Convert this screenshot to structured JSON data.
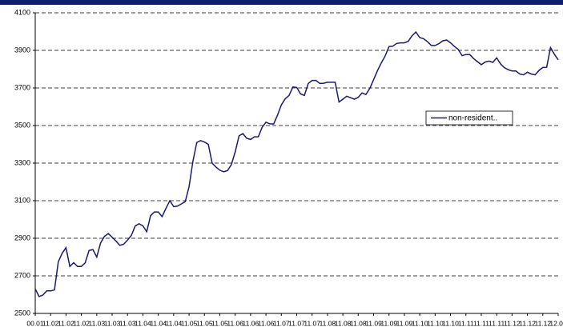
{
  "chart_data": {
    "type": "line",
    "categories": [
      "00.01",
      null,
      null,
      null,
      "11.02",
      null,
      null,
      null,
      "11.02",
      null,
      null,
      null,
      "11.02",
      null,
      null,
      null,
      "11.03",
      null,
      null,
      null,
      "11.03",
      null,
      null,
      null,
      "11.03",
      null,
      null,
      null,
      "11.04",
      null,
      null,
      null,
      "11.04",
      null,
      null,
      null,
      "11.04",
      null,
      null,
      null,
      "11.05",
      null,
      null,
      null,
      "11.05",
      null,
      null,
      null,
      "11.05",
      null,
      null,
      null,
      "11.06",
      null,
      null,
      null,
      "11.06",
      null,
      null,
      null,
      "11.06",
      null,
      null,
      null,
      "11.07",
      null,
      null,
      null,
      "11.07",
      null,
      null,
      null,
      "11.07",
      null,
      null,
      null,
      "11.08",
      null,
      null,
      null,
      "11.08",
      null,
      null,
      null,
      "11.08",
      null,
      null,
      null,
      "11.09",
      null,
      null,
      null,
      "11.09",
      null,
      null,
      null,
      "11.09",
      null,
      null,
      null,
      "11.10",
      null,
      null,
      null,
      "11.10",
      null,
      null,
      null,
      "11.10",
      null,
      null,
      null,
      "11.11",
      null,
      null,
      null,
      "11.11",
      null,
      null,
      null,
      "11.11",
      null,
      null,
      null,
      "11.12",
      null,
      null,
      null,
      "11.12",
      null,
      null,
      null,
      "11.12",
      null,
      null,
      null,
      "12.01"
    ],
    "series": [
      {
        "name": "non-resident..",
        "color": "#1a1a6e",
        "values": [
          2630,
          2590,
          2598,
          2620,
          2620,
          2625,
          2775,
          2820,
          2850,
          2750,
          2770,
          2750,
          2750,
          2770,
          2835,
          2840,
          2800,
          2875,
          2910,
          2925,
          2905,
          2885,
          2862,
          2868,
          2890,
          2915,
          2965,
          2977,
          2966,
          2935,
          3020,
          3040,
          3040,
          3015,
          3060,
          3100,
          3068,
          3071,
          3083,
          3095,
          3175,
          3310,
          3410,
          3420,
          3412,
          3400,
          3300,
          3279,
          3262,
          3254,
          3260,
          3292,
          3360,
          3445,
          3457,
          3432,
          3426,
          3440,
          3440,
          3490,
          3518,
          3509,
          3508,
          3555,
          3610,
          3642,
          3660,
          3705,
          3703,
          3668,
          3660,
          3724,
          3740,
          3740,
          3724,
          3725,
          3730,
          3730,
          3730,
          3625,
          3640,
          3656,
          3648,
          3640,
          3650,
          3673,
          3665,
          3697,
          3744,
          3792,
          3833,
          3870,
          3920,
          3922,
          3937,
          3940,
          3940,
          3948,
          3978,
          3998,
          3968,
          3962,
          3946,
          3926,
          3926,
          3936,
          3951,
          3955,
          3940,
          3921,
          3905,
          3872,
          3878,
          3878,
          3856,
          3840,
          3824,
          3838,
          3843,
          3836,
          3860,
          3828,
          3808,
          3797,
          3790,
          3790,
          3774,
          3770,
          3784,
          3774,
          3770,
          3793,
          3809,
          3810,
          3915,
          3880,
          3850
        ]
      }
    ],
    "ylim": [
      2500,
      4100
    ],
    "yticks": [
      2500,
      2700,
      2900,
      3100,
      3300,
      3500,
      3700,
      3900,
      4100
    ],
    "grid": true,
    "legend": "right",
    "header_color": "#0d1f6e"
  }
}
